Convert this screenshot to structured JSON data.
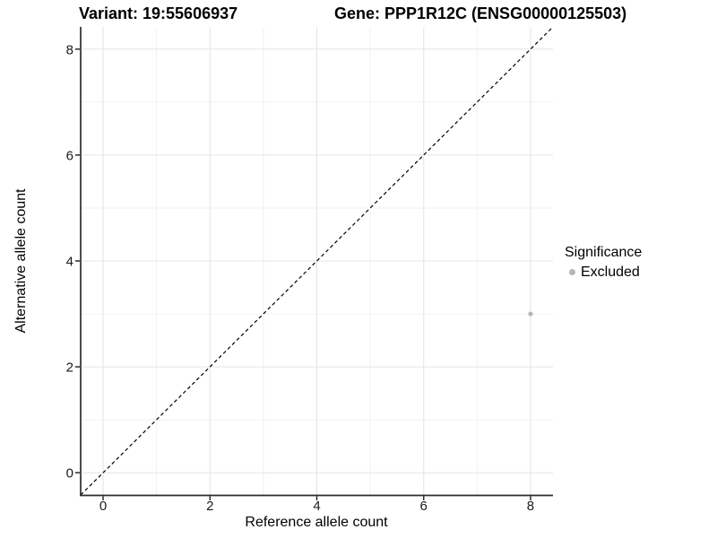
{
  "colors": {
    "background": "#ffffff",
    "grid_major": "#e4e4e4",
    "grid_minor": "#f1f1f1",
    "axis": "#2b2b2b",
    "tick_text": "#1a1a1a",
    "point": "#b5b5b5",
    "reference_line": "#000000"
  },
  "chart_data": {
    "type": "scatter",
    "titles": {
      "left": "Variant: 19:55606937",
      "right": "Gene: PPP1R12C (ENSG00000125503)"
    },
    "xlabel": "Reference allele count",
    "ylabel": "Alternative allele count",
    "xlim": [
      -0.42,
      8.42
    ],
    "ylim": [
      -0.42,
      8.42
    ],
    "x_ticks": [
      0,
      2,
      4,
      6,
      8
    ],
    "y_ticks": [
      0,
      2,
      4,
      6,
      8
    ],
    "x_minor_ticks": [
      1,
      3,
      5,
      7
    ],
    "y_minor_ticks": [
      1,
      3,
      5,
      7
    ],
    "grid": true,
    "reference_line": {
      "type": "identity",
      "equation": "y = x",
      "style": "dashed",
      "color": "#000000"
    },
    "series": [
      {
        "name": "Excluded",
        "color": "#b5b5b5",
        "points": [
          {
            "x": 8,
            "y": 3
          }
        ]
      }
    ],
    "legend": {
      "title": "Significance",
      "position": "right",
      "entries": [
        {
          "label": "Excluded",
          "color": "#b5b5b5"
        }
      ]
    }
  }
}
